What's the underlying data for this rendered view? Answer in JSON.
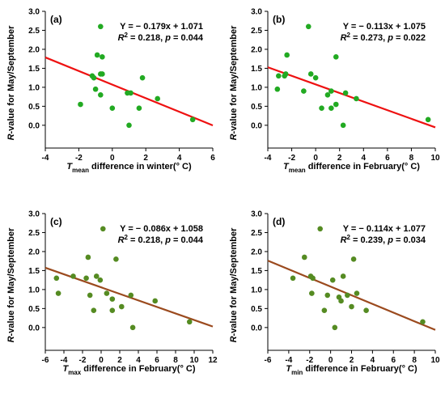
{
  "chart_data": [
    {
      "type": "scatter",
      "panel_label": "(a)",
      "equation": "Y = − 0.179x + 1.071",
      "stats": "R² = 0.218, p = 0.044",
      "xlabel": "T_mean difference in winter(°C)",
      "xlabel_parts": {
        "var": "T",
        "sub": "mean",
        "rest": " difference in winter(",
        "unit": "° C)"
      },
      "ylabel_parts": {
        "var": "R",
        "rest": "-value for May/September"
      },
      "xlim": [
        -4,
        6
      ],
      "ylim": [
        -0.6,
        3.0
      ],
      "x_ticks": [
        -4,
        -2,
        0,
        2,
        4,
        6
      ],
      "y_ticks": [
        0.0,
        0.5,
        1.0,
        1.5,
        2.0,
        2.5,
        3.0
      ],
      "point_color": "#22aa22",
      "line_color": "#ee1111",
      "fit": {
        "slope": -0.179,
        "intercept": 1.071,
        "x_range": [
          -4,
          6
        ]
      },
      "points": [
        {
          "x": -0.7,
          "y": 2.6
        },
        {
          "x": -0.9,
          "y": 1.85
        },
        {
          "x": -0.6,
          "y": 1.8
        },
        {
          "x": -1.2,
          "y": 1.3
        },
        {
          "x": -1.1,
          "y": 1.25
        },
        {
          "x": -0.7,
          "y": 1.35
        },
        {
          "x": -0.6,
          "y": 1.35
        },
        {
          "x": -1.0,
          "y": 0.95
        },
        {
          "x": -0.7,
          "y": 0.8
        },
        {
          "x": -1.9,
          "y": 0.55
        },
        {
          "x": 0.0,
          "y": 0.45
        },
        {
          "x": 0.9,
          "y": 0.85
        },
        {
          "x": 1.1,
          "y": 0.85
        },
        {
          "x": 1.8,
          "y": 1.25
        },
        {
          "x": 2.7,
          "y": 0.7
        },
        {
          "x": 1.6,
          "y": 0.45
        },
        {
          "x": 1.0,
          "y": 0.0
        },
        {
          "x": 4.8,
          "y": 0.15
        }
      ]
    },
    {
      "type": "scatter",
      "panel_label": "(b)",
      "equation": "Y = − 0.113x + 1.075",
      "stats": "R² = 0.273, p = 0.022",
      "xlabel": "T_mean difference in February(°C)",
      "xlabel_parts": {
        "var": "T",
        "sub": "mean",
        "rest": " difference in February(",
        "unit": "° C)"
      },
      "ylabel_parts": {
        "var": "R",
        "rest": "-value for May/September"
      },
      "xlim": [
        -4,
        10
      ],
      "ylim": [
        -0.6,
        3.0
      ],
      "x_ticks": [
        -4,
        -2,
        0,
        2,
        4,
        6,
        8,
        10
      ],
      "y_ticks": [
        0.0,
        0.5,
        1.0,
        1.5,
        2.0,
        2.5,
        3.0
      ],
      "point_color": "#22aa22",
      "line_color": "#ee1111",
      "fit": {
        "slope": -0.113,
        "intercept": 1.075,
        "x_range": [
          -4,
          10
        ]
      },
      "points": [
        {
          "x": -0.6,
          "y": 2.6
        },
        {
          "x": -2.4,
          "y": 1.85
        },
        {
          "x": 1.7,
          "y": 1.8
        },
        {
          "x": -3.1,
          "y": 1.3
        },
        {
          "x": -2.5,
          "y": 1.35
        },
        {
          "x": -2.6,
          "y": 1.3
        },
        {
          "x": -0.4,
          "y": 1.35
        },
        {
          "x": 0.0,
          "y": 1.25
        },
        {
          "x": -3.2,
          "y": 0.95
        },
        {
          "x": -1.0,
          "y": 0.9
        },
        {
          "x": 1.3,
          "y": 0.9
        },
        {
          "x": 1.0,
          "y": 0.8
        },
        {
          "x": 2.5,
          "y": 0.85
        },
        {
          "x": 3.4,
          "y": 0.7
        },
        {
          "x": 1.7,
          "y": 0.55
        },
        {
          "x": 0.5,
          "y": 0.45
        },
        {
          "x": 1.3,
          "y": 0.45
        },
        {
          "x": 2.3,
          "y": 0.0
        },
        {
          "x": 9.4,
          "y": 0.15
        }
      ]
    },
    {
      "type": "scatter",
      "panel_label": "(c)",
      "equation": "Y = − 0.086x + 1.058",
      "stats": "R² = 0.218, p = 0.044",
      "xlabel": "T_max difference in February(°C)",
      "xlabel_parts": {
        "var": "T",
        "sub": "max",
        "rest": " difference in February(",
        "unit": "° C)"
      },
      "ylabel_parts": {
        "var": "R",
        "rest": "-value for May/September"
      },
      "xlim": [
        -6,
        12
      ],
      "ylim": [
        -0.6,
        3.0
      ],
      "x_ticks": [
        -6,
        -4,
        -2,
        0,
        2,
        4,
        6,
        8,
        10,
        12
      ],
      "y_ticks": [
        0.0,
        0.5,
        1.0,
        1.5,
        2.0,
        2.5,
        3.0
      ],
      "point_color": "#558b22",
      "line_color": "#9b4a1e",
      "fit": {
        "slope": -0.086,
        "intercept": 1.058,
        "x_range": [
          -6,
          12
        ]
      },
      "points": [
        {
          "x": 0.2,
          "y": 2.6
        },
        {
          "x": -1.4,
          "y": 1.85
        },
        {
          "x": 1.6,
          "y": 1.8
        },
        {
          "x": -3.0,
          "y": 1.35
        },
        {
          "x": -4.8,
          "y": 1.3
        },
        {
          "x": -1.6,
          "y": 1.3
        },
        {
          "x": -0.5,
          "y": 1.35
        },
        {
          "x": -0.1,
          "y": 1.25
        },
        {
          "x": -4.6,
          "y": 0.9
        },
        {
          "x": -1.2,
          "y": 0.85
        },
        {
          "x": 0.6,
          "y": 0.9
        },
        {
          "x": 1.2,
          "y": 0.75
        },
        {
          "x": 3.2,
          "y": 0.85
        },
        {
          "x": 5.8,
          "y": 0.7
        },
        {
          "x": 2.2,
          "y": 0.55
        },
        {
          "x": -0.8,
          "y": 0.45
        },
        {
          "x": 1.2,
          "y": 0.45
        },
        {
          "x": 3.4,
          "y": 0.0
        },
        {
          "x": 9.5,
          "y": 0.15
        }
      ]
    },
    {
      "type": "scatter",
      "panel_label": "(d)",
      "equation": "Y = − 0.114x + 1.077",
      "stats": "R² = 0.239, p = 0.034",
      "xlabel": "T_min difference in February(°C)",
      "xlabel_parts": {
        "var": "T",
        "sub": "min",
        "rest": " difference in February(",
        "unit": "° C)"
      },
      "ylabel_parts": {
        "var": "R",
        "rest": "-value for May/September"
      },
      "xlim": [
        -6,
        10
      ],
      "ylim": [
        -0.6,
        3.0
      ],
      "x_ticks": [
        -6,
        -4,
        -2,
        0,
        2,
        4,
        6,
        8,
        10
      ],
      "y_ticks": [
        0.0,
        0.5,
        1.0,
        1.5,
        2.0,
        2.5,
        3.0
      ],
      "point_color": "#558b22",
      "line_color": "#9b4a1e",
      "fit": {
        "slope": -0.114,
        "intercept": 1.077,
        "x_range": [
          -6,
          10
        ]
      },
      "points": [
        {
          "x": -1.0,
          "y": 2.6
        },
        {
          "x": -2.5,
          "y": 1.85
        },
        {
          "x": 2.2,
          "y": 1.8
        },
        {
          "x": -3.6,
          "y": 1.3
        },
        {
          "x": -1.9,
          "y": 1.35
        },
        {
          "x": -1.7,
          "y": 1.3
        },
        {
          "x": 0.2,
          "y": 1.25
        },
        {
          "x": 1.2,
          "y": 1.35
        },
        {
          "x": -1.8,
          "y": 0.9
        },
        {
          "x": -0.3,
          "y": 0.85
        },
        {
          "x": 0.8,
          "y": 0.8
        },
        {
          "x": 1.6,
          "y": 0.85
        },
        {
          "x": 2.5,
          "y": 0.9
        },
        {
          "x": 1.0,
          "y": 0.7
        },
        {
          "x": 2.0,
          "y": 0.55
        },
        {
          "x": 3.4,
          "y": 0.45
        },
        {
          "x": -0.6,
          "y": 0.45
        },
        {
          "x": 0.4,
          "y": 0.0
        },
        {
          "x": 8.8,
          "y": 0.15
        }
      ]
    }
  ]
}
